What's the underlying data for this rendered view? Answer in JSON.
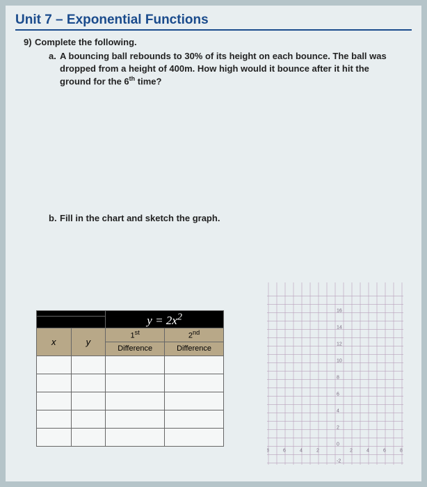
{
  "title": "Unit 7 – Exponential Functions",
  "q": {
    "num": "9)",
    "text": "Complete the following."
  },
  "a": {
    "letter": "a.",
    "text": "A bouncing ball rebounds to 30% of its height on each bounce. The ball was dropped from a height of 400m. How high would it bounce after it hit the ground for the 6",
    "sup": "th",
    "tail": " time?"
  },
  "b": {
    "letter": "b.",
    "text": "Fill in the chart and sketch the graph."
  },
  "table": {
    "equation": "y = 2x",
    "exp": "2",
    "x": "x",
    "y": "y",
    "d1a": "1",
    "d1as": "st",
    "d1b": "Difference",
    "d2a": "2",
    "d2as": "nd",
    "d2b": "Difference",
    "rows": 5
  },
  "graph": {
    "yticks": [
      "16",
      "14",
      "12",
      "10",
      "8",
      "6",
      "4",
      "2",
      "0",
      "-2"
    ],
    "xticks": [
      "-8",
      "-6",
      "-4",
      "-2",
      "2",
      "4",
      "6",
      "8"
    ],
    "grid_color": "#b9a0bb",
    "axis_color": "#777"
  }
}
